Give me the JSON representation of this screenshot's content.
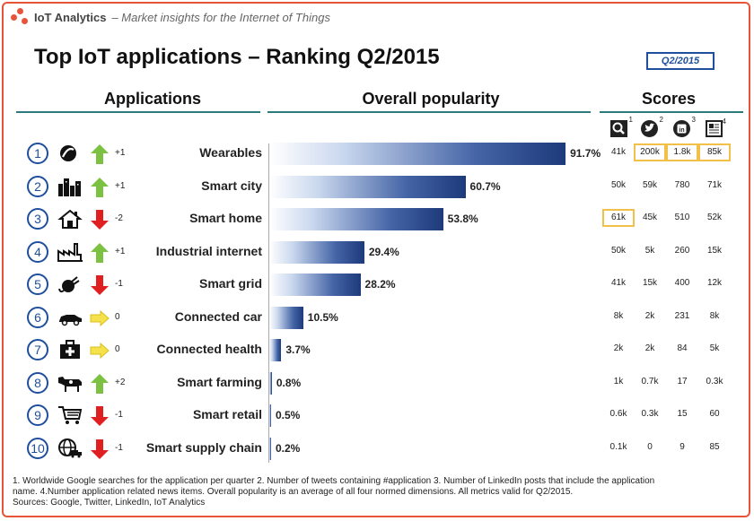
{
  "header": {
    "brand": "IoT Analytics",
    "tagline": "– Market insights for the Internet of Things"
  },
  "title": "Top IoT applications – Ranking Q2/2015",
  "quarter_badge": "Q2/2015",
  "columns": {
    "applications": "Applications",
    "popularity": "Overall popularity",
    "scores": "Scores"
  },
  "score_icons": [
    {
      "icon": "search-icon",
      "note": "1"
    },
    {
      "icon": "twitter-icon",
      "note": "2"
    },
    {
      "icon": "linkedin-icon",
      "note": "3"
    },
    {
      "icon": "news-icon",
      "note": "4"
    }
  ],
  "colors": {
    "accent": "#e8543a",
    "bar": "#1d3a7a",
    "up": "#7cc142",
    "down": "#e02020",
    "same": "#f5e14b",
    "highlight": "#f2c048"
  },
  "chart_data": {
    "type": "bar",
    "title": "Top IoT applications – Ranking Q2/2015",
    "categories": [
      "Wearables",
      "Smart city",
      "Smart home",
      "Industrial internet",
      "Smart grid",
      "Connected car",
      "Connected health",
      "Smart farming",
      "Smart retail",
      "Smart supply chain"
    ],
    "values": [
      91.7,
      60.7,
      53.8,
      29.4,
      28.2,
      10.5,
      3.7,
      0.8,
      0.5,
      0.2
    ],
    "value_labels": [
      "91.7%",
      "60.7%",
      "53.8%",
      "29.4%",
      "28.2%",
      "10.5%",
      "3.7%",
      "0.8%",
      "0.5%",
      "0.2%"
    ],
    "xlim": [
      0,
      100
    ],
    "orientation": "horizontal"
  },
  "rows": [
    {
      "rank": "1",
      "icon": "wearable-band-icon",
      "trend": "up",
      "trend_icon": "arrow-up-icon",
      "change": "+1",
      "name": "Wearables",
      "scores": [
        "41k",
        "200k",
        "1.8k",
        "85k"
      ],
      "highlight": [
        false,
        true,
        true,
        true
      ]
    },
    {
      "rank": "2",
      "icon": "city-icon",
      "trend": "up",
      "trend_icon": "arrow-up-icon",
      "change": "+1",
      "name": "Smart city",
      "scores": [
        "50k",
        "59k",
        "780",
        "71k"
      ],
      "highlight": [
        false,
        false,
        false,
        false
      ]
    },
    {
      "rank": "3",
      "icon": "house-icon",
      "trend": "down",
      "trend_icon": "arrow-down-icon",
      "change": "-2",
      "name": "Smart home",
      "scores": [
        "61k",
        "45k",
        "510",
        "52k"
      ],
      "highlight": [
        true,
        false,
        false,
        false
      ]
    },
    {
      "rank": "4",
      "icon": "factory-icon",
      "trend": "up",
      "trend_icon": "arrow-up-icon",
      "change": "+1",
      "name": "Industrial internet",
      "scores": [
        "50k",
        "5k",
        "260",
        "15k"
      ],
      "highlight": [
        false,
        false,
        false,
        false
      ]
    },
    {
      "rank": "5",
      "icon": "plug-icon",
      "trend": "down",
      "trend_icon": "arrow-down-icon",
      "change": "-1",
      "name": "Smart grid",
      "scores": [
        "41k",
        "15k",
        "400",
        "12k"
      ],
      "highlight": [
        false,
        false,
        false,
        false
      ]
    },
    {
      "rank": "6",
      "icon": "car-icon",
      "trend": "same",
      "trend_icon": "arrow-right-icon",
      "change": "0",
      "name": "Connected car",
      "scores": [
        "8k",
        "2k",
        "231",
        "8k"
      ],
      "highlight": [
        false,
        false,
        false,
        false
      ]
    },
    {
      "rank": "7",
      "icon": "medical-kit-icon",
      "trend": "same",
      "trend_icon": "arrow-right-icon",
      "change": "0",
      "name": "Connected health",
      "scores": [
        "2k",
        "2k",
        "84",
        "5k"
      ],
      "highlight": [
        false,
        false,
        false,
        false
      ]
    },
    {
      "rank": "8",
      "icon": "cow-icon",
      "trend": "up",
      "trend_icon": "arrow-up-icon",
      "change": "+2",
      "name": "Smart farming",
      "scores": [
        "1k",
        "0.7k",
        "17",
        "0.3k"
      ],
      "highlight": [
        false,
        false,
        false,
        false
      ]
    },
    {
      "rank": "9",
      "icon": "shopping-cart-icon",
      "trend": "down",
      "trend_icon": "arrow-down-icon",
      "change": "-1",
      "name": "Smart retail",
      "scores": [
        "0.6k",
        "0.3k",
        "15",
        "60"
      ],
      "highlight": [
        false,
        false,
        false,
        false
      ]
    },
    {
      "rank": "10",
      "icon": "globe-truck-icon",
      "trend": "down",
      "trend_icon": "arrow-down-icon",
      "change": "-1",
      "name": "Smart supply chain",
      "scores": [
        "0.1k",
        "0",
        "9",
        "85"
      ],
      "highlight": [
        false,
        false,
        false,
        false
      ]
    }
  ],
  "footnote": {
    "line1": "1. Worldwide Google searches for the application per quarter  2. Number of tweets containing #application 3. Number of LinkedIn posts that include the application",
    "line2": "name. 4.Number application related news items.  Overall popularity is an average of all four normed dimensions. All metrics valid for Q2/2015.",
    "line3": "Sources: Google, Twitter, LinkedIn, IoT Analytics"
  }
}
